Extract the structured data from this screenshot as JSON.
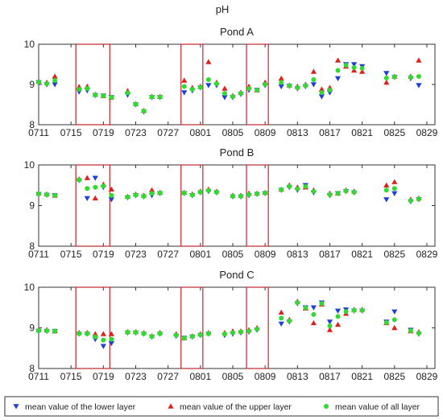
{
  "figure_title": "pH",
  "colors": {
    "lower": "#1f3fd8",
    "upper": "#e0201a",
    "all": "#2edc2e",
    "highlight": "#c0272d"
  },
  "chart_data": [
    {
      "type": "scatter",
      "title": "Pond A",
      "xlabel": "",
      "ylabel": "",
      "ylim": [
        8,
        10
      ],
      "yticks": [
        8,
        9,
        10
      ],
      "xticks": [
        "0711",
        "0715",
        "0719",
        "0723",
        "0727",
        "0801",
        "0805",
        "0809",
        "0813",
        "0817",
        "0821",
        "0825",
        "0829"
      ],
      "highlights": [
        [
          15.6,
          19.8
        ],
        [
          28.6,
          31.3
        ],
        [
          36.7,
          39.4
        ]
      ],
      "series": [
        {
          "name": "mean value of the lower layer",
          "x": [
            11,
            12,
            13,
            16,
            17,
            18,
            19,
            20,
            22,
            23,
            24,
            25,
            26,
            29,
            30,
            31,
            32,
            33,
            34,
            35,
            36,
            37,
            38,
            39,
            41,
            42,
            43,
            44,
            45,
            46,
            47,
            48,
            49,
            50,
            51,
            54,
            55,
            57,
            58
          ],
          "y": [
            9.05,
            9.0,
            9.0,
            8.82,
            8.85,
            8.73,
            8.72,
            8.68,
            8.74,
            8.5,
            8.32,
            8.68,
            8.68,
            8.8,
            8.85,
            8.92,
            8.98,
            8.98,
            8.68,
            8.68,
            8.76,
            8.86,
            8.86,
            8.98,
            8.95,
            8.96,
            8.9,
            8.95,
            9.0,
            8.7,
            8.8,
            9.15,
            9.5,
            9.5,
            9.45,
            9.28,
            9.18,
            9.15,
            8.98
          ]
        },
        {
          "name": "mean value of the upper layer",
          "x": [
            11,
            12,
            13,
            16,
            17,
            18,
            19,
            20,
            22,
            23,
            24,
            25,
            26,
            29,
            30,
            31,
            32,
            33,
            34,
            35,
            36,
            37,
            38,
            39,
            41,
            42,
            43,
            44,
            45,
            46,
            47,
            48,
            49,
            50,
            51,
            54,
            55,
            57,
            58
          ],
          "y": [
            9.08,
            9.05,
            9.2,
            8.94,
            8.95,
            8.75,
            8.72,
            8.68,
            8.84,
            8.52,
            8.35,
            8.7,
            8.7,
            9.1,
            8.92,
            8.95,
            9.56,
            9.05,
            8.9,
            8.72,
            8.8,
            8.95,
            8.86,
            9.05,
            9.15,
            8.98,
            8.95,
            9.0,
            9.32,
            8.88,
            8.92,
            9.6,
            9.45,
            9.35,
            9.32,
            9.05,
            9.2,
            9.2,
            9.6
          ]
        },
        {
          "name": "mean value of all layer",
          "x": [
            11,
            12,
            13,
            16,
            17,
            18,
            19,
            20,
            22,
            23,
            24,
            25,
            26,
            29,
            30,
            31,
            32,
            33,
            34,
            35,
            36,
            37,
            38,
            39,
            41,
            42,
            43,
            44,
            45,
            46,
            47,
            48,
            49,
            50,
            51,
            54,
            55,
            57,
            58
          ],
          "y": [
            9.06,
            9.02,
            9.1,
            8.88,
            8.9,
            8.74,
            8.72,
            8.68,
            8.79,
            8.51,
            8.34,
            8.69,
            8.69,
            8.95,
            8.88,
            8.93,
            9.12,
            9.02,
            8.78,
            8.7,
            8.78,
            8.9,
            8.86,
            9.0,
            9.05,
            8.97,
            8.92,
            8.97,
            9.12,
            8.8,
            8.86,
            9.35,
            9.48,
            9.42,
            9.4,
            9.16,
            9.19,
            9.18,
            9.2
          ]
        }
      ]
    },
    {
      "type": "scatter",
      "title": "Pond B",
      "xlabel": "",
      "ylabel": "",
      "ylim": [
        8,
        10
      ],
      "yticks": [
        8,
        9,
        10
      ],
      "xticks": [
        "0711",
        "0715",
        "0719",
        "0723",
        "0727",
        "0801",
        "0805",
        "0809",
        "0813",
        "0817",
        "0821",
        "0825",
        "0829"
      ],
      "highlights": [
        [
          15.6,
          19.8
        ],
        [
          28.6,
          31.3
        ],
        [
          36.7,
          39.4
        ]
      ],
      "series": [
        {
          "name": "mean value of the lower layer",
          "x": [
            11,
            12,
            13,
            16,
            17,
            18,
            19,
            20,
            22,
            23,
            24,
            25,
            26,
            29,
            30,
            31,
            32,
            33,
            35,
            36,
            37,
            38,
            39,
            41,
            42,
            43,
            44,
            45,
            47,
            48,
            49,
            50,
            54,
            55,
            57,
            58
          ],
          "y": [
            9.28,
            9.26,
            9.25,
            9.62,
            9.18,
            9.68,
            9.45,
            9.15,
            9.2,
            9.25,
            9.22,
            9.25,
            9.3,
            9.3,
            9.25,
            9.32,
            9.35,
            9.32,
            9.22,
            9.22,
            9.25,
            9.28,
            9.3,
            9.38,
            9.45,
            9.38,
            9.5,
            9.32,
            9.25,
            9.3,
            9.35,
            9.32,
            9.15,
            9.3,
            9.1,
            9.15
          ]
        },
        {
          "name": "mean value of the upper layer",
          "x": [
            11,
            12,
            13,
            16,
            17,
            18,
            19,
            20,
            22,
            23,
            24,
            25,
            26,
            29,
            30,
            31,
            32,
            33,
            35,
            36,
            37,
            38,
            39,
            41,
            42,
            43,
            44,
            45,
            47,
            48,
            49,
            50,
            54,
            55,
            57,
            58
          ],
          "y": [
            9.3,
            9.28,
            9.25,
            9.65,
            9.68,
            9.18,
            9.52,
            9.4,
            9.22,
            9.28,
            9.25,
            9.38,
            9.32,
            9.32,
            9.28,
            9.35,
            9.4,
            9.35,
            9.25,
            9.25,
            9.3,
            9.3,
            9.32,
            9.4,
            9.5,
            9.45,
            9.45,
            9.38,
            9.3,
            9.3,
            9.38,
            9.35,
            9.5,
            9.58,
            9.15,
            9.18
          ]
        },
        {
          "name": "mean value of all layer",
          "x": [
            11,
            12,
            13,
            16,
            17,
            18,
            19,
            20,
            22,
            23,
            24,
            25,
            26,
            29,
            30,
            31,
            32,
            33,
            35,
            36,
            37,
            38,
            39,
            41,
            42,
            43,
            44,
            45,
            47,
            48,
            49,
            50,
            54,
            55,
            57,
            58
          ],
          "y": [
            9.29,
            9.27,
            9.25,
            9.63,
            9.42,
            9.45,
            9.48,
            9.25,
            9.21,
            9.26,
            9.23,
            9.3,
            9.31,
            9.31,
            9.26,
            9.33,
            9.37,
            9.33,
            9.23,
            9.23,
            9.27,
            9.29,
            9.31,
            9.39,
            9.47,
            9.41,
            9.47,
            9.35,
            9.27,
            9.3,
            9.36,
            9.33,
            9.38,
            9.42,
            9.12,
            9.16
          ]
        }
      ]
    },
    {
      "type": "scatter",
      "title": "Pond C",
      "xlabel": "",
      "ylabel": "",
      "ylim": [
        8,
        10
      ],
      "yticks": [
        8,
        9,
        10
      ],
      "xticks": [
        "0711",
        "0715",
        "0719",
        "0723",
        "0727",
        "0801",
        "0805",
        "0809",
        "0813",
        "0817",
        "0821",
        "0825",
        "0829"
      ],
      "highlights": [
        [
          15.6,
          19.8
        ],
        [
          28.6,
          31.3
        ],
        [
          36.7,
          39.4
        ]
      ],
      "series": [
        {
          "name": "mean value of the lower layer",
          "x": [
            11,
            12,
            13,
            16,
            17,
            18,
            19,
            20,
            22,
            23,
            24,
            25,
            26,
            28,
            29,
            30,
            31,
            32,
            34,
            35,
            36,
            37,
            38,
            41,
            42,
            43,
            44,
            45,
            46,
            47,
            48,
            49,
            50,
            51,
            54,
            55,
            57,
            58
          ],
          "y": [
            8.92,
            8.92,
            8.92,
            8.85,
            8.85,
            8.72,
            8.55,
            8.62,
            8.88,
            8.88,
            8.85,
            8.78,
            8.85,
            8.8,
            8.75,
            8.78,
            8.82,
            8.85,
            8.82,
            8.85,
            8.88,
            8.9,
            8.95,
            9.1,
            9.15,
            9.6,
            9.5,
            9.5,
            9.62,
            9.15,
            9.42,
            9.45,
            9.42,
            9.42,
            9.15,
            9.4,
            8.95,
            8.85
          ]
        },
        {
          "name": "mean value of the upper layer",
          "x": [
            11,
            12,
            13,
            16,
            17,
            18,
            19,
            20,
            22,
            23,
            24,
            25,
            26,
            28,
            29,
            30,
            31,
            32,
            34,
            35,
            36,
            37,
            38,
            41,
            42,
            43,
            44,
            45,
            46,
            47,
            48,
            49,
            50,
            51,
            54,
            55,
            57,
            58
          ],
          "y": [
            8.95,
            8.95,
            8.92,
            8.88,
            8.88,
            8.85,
            8.85,
            8.85,
            8.9,
            8.9,
            8.88,
            8.8,
            8.88,
            8.85,
            8.75,
            8.8,
            8.85,
            8.88,
            8.88,
            8.92,
            8.92,
            8.95,
            9.0,
            9.38,
            9.2,
            9.65,
            9.48,
            9.12,
            9.58,
            8.95,
            9.08,
            9.35,
            9.45,
            9.45,
            9.12,
            9.0,
            8.92,
            8.9
          ]
        },
        {
          "name": "mean value of all layer",
          "x": [
            11,
            12,
            13,
            16,
            17,
            18,
            19,
            20,
            22,
            23,
            24,
            25,
            26,
            28,
            29,
            30,
            31,
            32,
            34,
            35,
            36,
            37,
            38,
            41,
            42,
            43,
            44,
            45,
            46,
            47,
            48,
            49,
            50,
            51,
            54,
            55,
            57,
            58
          ],
          "y": [
            8.93,
            8.93,
            8.92,
            8.86,
            8.86,
            8.78,
            8.7,
            8.72,
            8.89,
            8.89,
            8.86,
            8.79,
            8.86,
            8.82,
            8.75,
            8.79,
            8.83,
            8.86,
            8.85,
            8.88,
            8.9,
            8.92,
            8.97,
            9.24,
            9.17,
            9.62,
            9.49,
            9.33,
            9.6,
            9.05,
            9.28,
            9.4,
            9.43,
            9.43,
            9.13,
            9.2,
            8.93,
            8.87
          ]
        }
      ]
    }
  ],
  "legend": {
    "placement": "bottom",
    "items": [
      {
        "label": "mean value of the lower layer",
        "marker": "triangle-down"
      },
      {
        "label": "mean value of the upper layer",
        "marker": "triangle-up"
      },
      {
        "label": "mean value of all layer",
        "marker": "circle"
      }
    ]
  }
}
